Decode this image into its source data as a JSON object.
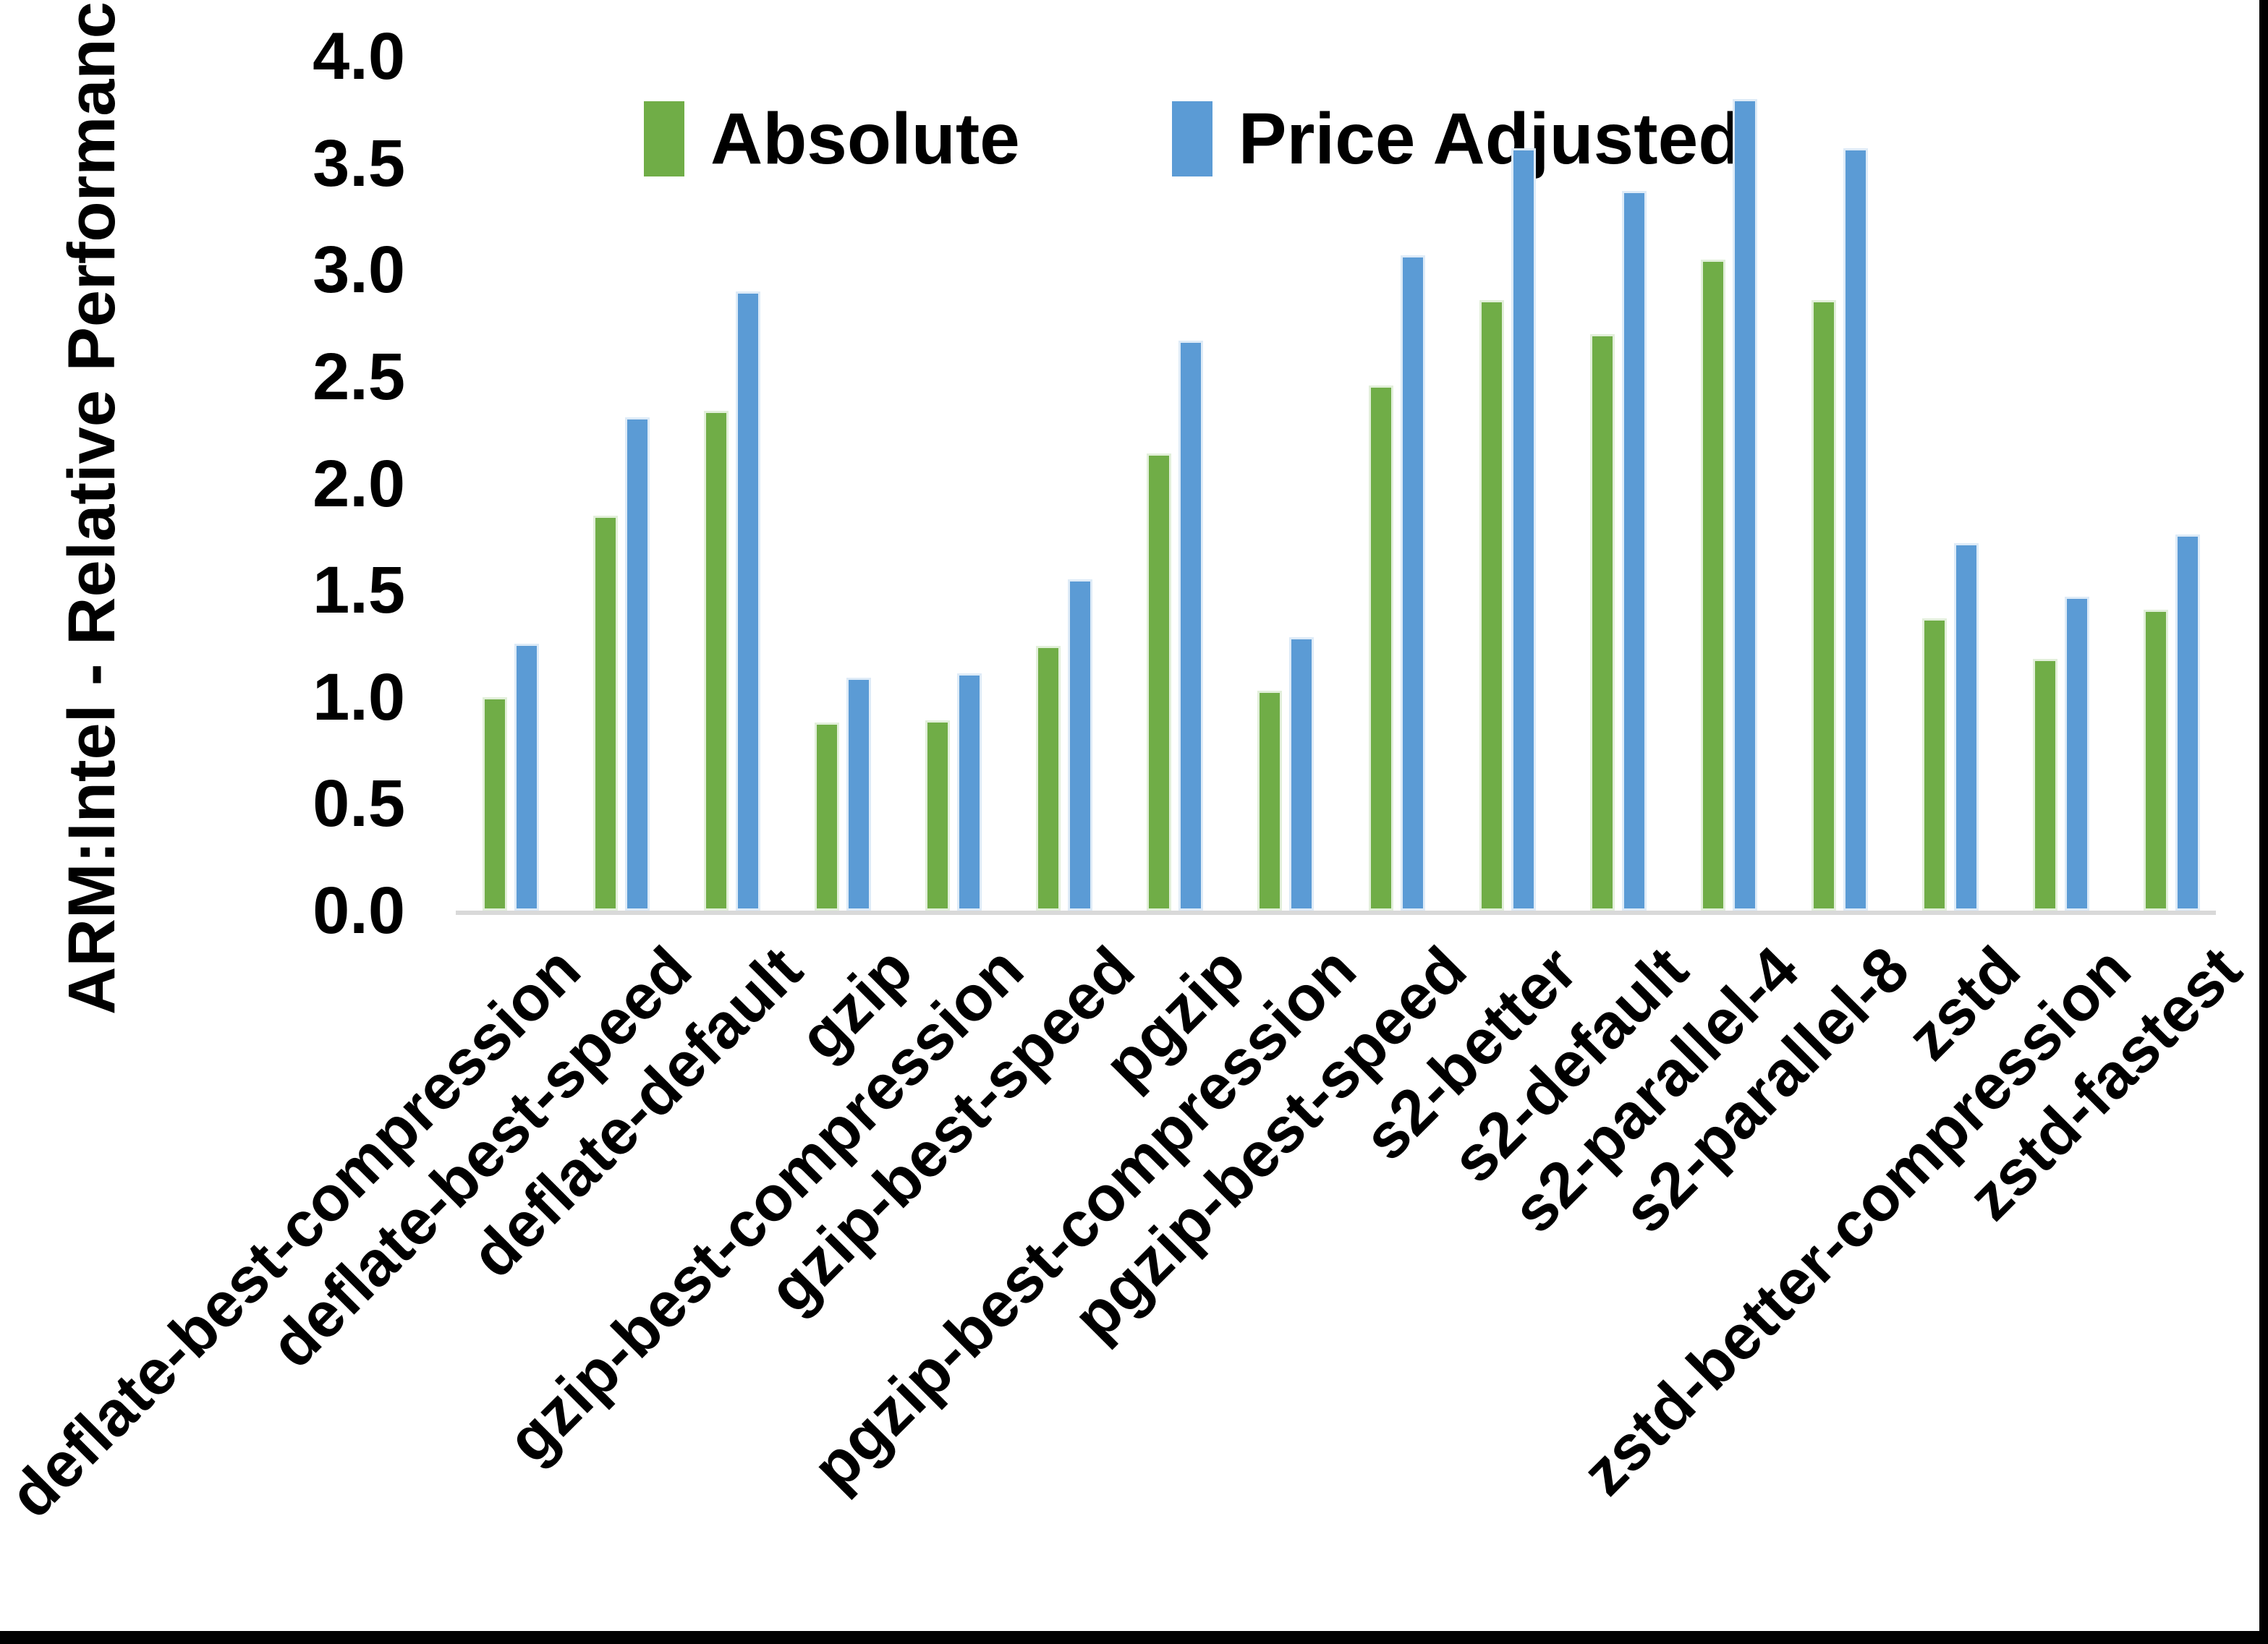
{
  "chart_data": {
    "type": "bar",
    "title": "",
    "ylabel": "ARM:Intel - Relative Performance",
    "xlabel": "",
    "ylim": [
      0.0,
      4.0
    ],
    "ytick_step": 0.5,
    "ytick_labels": [
      "0.0",
      "0.5",
      "1.0",
      "1.5",
      "2.0",
      "2.5",
      "3.0",
      "3.5",
      "4.0"
    ],
    "grid": false,
    "legend_position": "top-center",
    "axis_line_color": "#D9D9D9",
    "categories": [
      "deflate-best-compression",
      "deflate-best-speed",
      "deflate-default",
      "gzip",
      "gzip-best-compression",
      "gzip-best-speed",
      "pgzip",
      "pgzip-best-compression",
      "pgzip-best-speed",
      "s2-better",
      "s2-default",
      "s2-parallel-4",
      "s2-parallel-8",
      "zstd",
      "zstd-better-compression",
      "zstd-fastest"
    ],
    "series": [
      {
        "name": "Absolute",
        "color": "#70AD47",
        "edge_color": "#E2EFDA",
        "values": [
          1.0,
          1.85,
          2.34,
          0.88,
          0.89,
          1.24,
          2.14,
          1.03,
          2.46,
          2.86,
          2.7,
          3.05,
          2.86,
          1.37,
          1.18,
          1.41
        ]
      },
      {
        "name": "Price Adjusted",
        "color": "#5B9BD5",
        "edge_color": "#DEEBF7",
        "values": [
          1.25,
          2.31,
          2.9,
          1.09,
          1.11,
          1.55,
          2.67,
          1.28,
          3.07,
          3.57,
          3.37,
          3.8,
          3.57,
          1.72,
          1.47,
          1.76
        ]
      }
    ]
  }
}
